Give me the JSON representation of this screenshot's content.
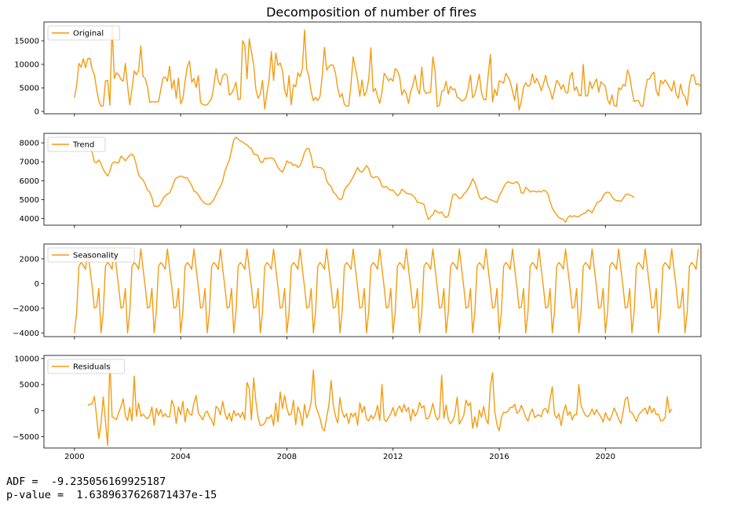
{
  "chart_data": {
    "type": "line",
    "title": "Decomposition of number of fires",
    "line_color": "#f39c12",
    "x_tick_labels": [
      "2000",
      "2004",
      "2008",
      "2012",
      "2016",
      "2020"
    ],
    "x_tick_years": [
      2000,
      2004,
      2008,
      2012,
      2016,
      2020
    ],
    "xlim": [
      1998.85,
      2023.6
    ],
    "x_start": 2000.0,
    "x_step": 0.08333,
    "panels": [
      {
        "name": "Original",
        "legend": "Original",
        "ylim": [
          -500,
          19000
        ],
        "yticks": [
          0,
          5000,
          10000,
          15000
        ],
        "x_start": 2000.0,
        "values": [
          2900,
          5600,
          10200,
          9400,
          11200,
          9300,
          11200,
          11300,
          8900,
          7800,
          4700,
          2300,
          1100,
          1200,
          6500,
          6600,
          1300,
          18200,
          7000,
          8200,
          7800,
          6800,
          6400,
          10200,
          5400,
          1400,
          4800,
          8600,
          7800,
          8700,
          13900,
          7400,
          7000,
          5200,
          1900,
          2100,
          2000,
          2000,
          2100,
          4600,
          7100,
          7300,
          6400,
          9600,
          4800,
          6700,
          2800,
          7100,
          1600,
          2700,
          6400,
          9500,
          10700,
          6200,
          7000,
          5100,
          7600,
          1900,
          1500,
          1300,
          1400,
          2100,
          2700,
          5400,
          9100,
          6500,
          5600,
          7600,
          8000,
          7600,
          3500,
          3800,
          4800,
          6200,
          2500,
          2700,
          15000,
          14100,
          6900,
          15400,
          12600,
          10000,
          4700,
          2800,
          3700,
          6600,
          500,
          3900,
          6800,
          12700,
          6600,
          12400,
          9800,
          10300,
          8700,
          4500,
          3100,
          7600,
          1400,
          5700,
          5200,
          8200,
          7400,
          9000,
          17300,
          8900,
          7400,
          4200,
          2300,
          3000,
          2300,
          3200,
          7600,
          13600,
          8800,
          9500,
          9900,
          9800,
          8100,
          4900,
          3000,
          3800,
          1500,
          1100,
          1200,
          5800,
          11600,
          9100,
          6700,
          3200,
          6700,
          3300,
          4200,
          6700,
          13500,
          4200,
          4900,
          3200,
          1700,
          4100,
          8100,
          7400,
          6500,
          7000,
          6400,
          9100,
          8600,
          7300,
          3500,
          4600,
          3800,
          1700,
          4200,
          5600,
          7700,
          4800,
          3700,
          9400,
          4500,
          3800,
          4000,
          4100,
          11600,
          8600,
          1000,
          1300,
          4200,
          4500,
          6400,
          3700,
          5300,
          4600,
          4800,
          3000,
          2800,
          2200,
          2400,
          2900,
          5000,
          7700,
          2900,
          3600,
          5600,
          7900,
          4000,
          2500,
          2500,
          7600,
          12100,
          2000,
          4700,
          3400,
          6500,
          6300,
          6000,
          8100,
          7300,
          6300,
          4300,
          2300,
          5900,
          300,
          2200,
          5100,
          6100,
          5300,
          5600,
          8000,
          6000,
          7000,
          5900,
          4400,
          5800,
          7700,
          5500,
          4500,
          2600,
          4500,
          6600,
          6000,
          4700,
          5700,
          4100,
          3900,
          7300,
          8300,
          4500,
          5200,
          3500,
          3300,
          10000,
          3300,
          3300,
          6400,
          4800,
          5900,
          6900,
          4100,
          6300,
          5800,
          5300,
          2500,
          1500,
          3500,
          1200,
          1100,
          5000,
          4600,
          5700,
          5400,
          8800,
          7500,
          4500,
          2100,
          2300,
          2300,
          1200,
          1100,
          4400,
          6800,
          6900,
          7900,
          8300,
          4400,
          3300,
          6600,
          5900,
          6700,
          6000,
          5100,
          4300,
          6500,
          3600,
          2800,
          5800,
          3700,
          3200,
          1300,
          5800,
          7800,
          7700,
          5700,
          5900,
          5400
        ]
      },
      {
        "name": "Trend",
        "legend": "Trend",
        "ylim": [
          3650,
          8500
        ],
        "yticks": [
          4000,
          5000,
          6000,
          7000,
          8000
        ],
        "x_start": 2000.5,
        "values": [
          7900,
          7700,
          7500,
          7000,
          6950,
          7100,
          6900,
          6600,
          6400,
          6250,
          6500,
          6900,
          7000,
          6950,
          6950,
          7300,
          7200,
          7050,
          7200,
          7350,
          7400,
          7250,
          6800,
          6300,
          6150,
          6050,
          5800,
          5500,
          5400,
          5100,
          4650,
          4650,
          4650,
          4800,
          5050,
          5200,
          5300,
          5350,
          5600,
          5950,
          6150,
          6200,
          6250,
          6200,
          6150,
          6150,
          5950,
          5750,
          5450,
          5400,
          5250,
          5050,
          4900,
          4800,
          4750,
          4750,
          4850,
          5000,
          5250,
          5500,
          5700,
          6000,
          6500,
          6800,
          7100,
          7600,
          8150,
          8300,
          8200,
          8100,
          8050,
          7950,
          7900,
          7750,
          7700,
          7400,
          7400,
          7300,
          7000,
          6950,
          7200,
          7150,
          7200,
          7200,
          7150,
          6950,
          6700,
          6550,
          6450,
          6700,
          7050,
          6950,
          6950,
          6800,
          6850,
          6700,
          6800,
          7100,
          7500,
          7700,
          7700,
          7300,
          6700,
          6750,
          6700,
          6700,
          6650,
          6500,
          6000,
          5800,
          5700,
          5400,
          5300,
          5100,
          5000,
          5050,
          5500,
          5700,
          5800,
          6000,
          6200,
          6450,
          6700,
          6500,
          6450,
          6600,
          6800,
          6650,
          6250,
          6150,
          6200,
          6200,
          6050,
          5700,
          5650,
          5700,
          5550,
          5500,
          5500,
          5350,
          5200,
          5300,
          5550,
          5450,
          5350,
          5300,
          5300,
          5200,
          5100,
          4850,
          4850,
          4800,
          4750,
          4300,
          3950,
          4100,
          4200,
          4450,
          4350,
          4300,
          4350,
          4150,
          4050,
          4150,
          4700,
          5250,
          5300,
          5200,
          5050,
          5100,
          5300,
          5400,
          5600,
          5800,
          6100,
          5900,
          5550,
          5150,
          5000,
          5100,
          5150,
          5050,
          5000,
          4950,
          4900,
          4850,
          5200,
          5400,
          5650,
          5850,
          5950,
          5900,
          5850,
          5900,
          5950,
          5800,
          5350,
          5350,
          5650,
          5550,
          5400,
          5450,
          5450,
          5400,
          5450,
          5400,
          5500,
          5450,
          5300,
          4900,
          4550,
          4350,
          4200,
          4050,
          4000,
          3950,
          3800,
          4050,
          4150,
          4100,
          4150,
          4100,
          4100,
          4200,
          4250,
          4300,
          4450,
          4400,
          4300,
          4550,
          4800,
          4900,
          4950,
          5200,
          5350,
          5400,
          5350,
          5150,
          5000,
          4950,
          4950,
          4900,
          5050,
          5250,
          5300,
          5250,
          5200,
          5100
        ]
      },
      {
        "name": "Seasonality",
        "legend": "Seasonality",
        "ylim": [
          -4300,
          3200
        ],
        "yticks": [
          -4000,
          -2000,
          0,
          2000
        ],
        "x_start": 2000.0,
        "pattern": [
          -4000,
          -2300,
          1400,
          1700,
          1500,
          1150,
          2800,
          1200,
          -300,
          -2000,
          -1900,
          -400
        ],
        "cycles": 23,
        "tail": [
          -4000,
          -2300,
          1400,
          1700,
          1500,
          1150,
          2800
        ]
      },
      {
        "name": "Residuals",
        "legend": "Residuals",
        "ylim": [
          -7200,
          10600
        ],
        "yticks": [
          -5000,
          0,
          5000,
          10000
        ],
        "x_start": 2000.5,
        "values": [
          1000,
          1200,
          1300,
          2700,
          -1200,
          -5400,
          -2500,
          2600,
          -2100,
          -6700,
          9800,
          -1200,
          -1500,
          -1700,
          -400,
          700,
          2300,
          -1000,
          -1900,
          600,
          -2000,
          6600,
          -1100,
          1400,
          -1100,
          -700,
          -1200,
          -1600,
          -1000,
          700,
          -2800,
          400,
          -900,
          200,
          -1200,
          -600,
          -1200,
          -1200,
          2000,
          800,
          -2500,
          700,
          -800,
          1800,
          -2200,
          400,
          -600,
          -900,
          1500,
          2900,
          -500,
          -1100,
          -1800,
          -500,
          -100,
          -1200,
          -1800,
          -2900,
          800,
          400,
          -800,
          1800,
          -500,
          -1700,
          -500,
          -2100,
          0,
          -1000,
          -500,
          -1300,
          -300,
          -1800,
          5400,
          4300,
          -1800,
          6300,
          1800,
          -1300,
          -2900,
          -2800,
          -2400,
          -1300,
          -1500,
          -800,
          -2900,
          1500,
          -2200,
          3600,
          400,
          2900,
          500,
          -900,
          -600,
          2000,
          -2700,
          700,
          -400,
          -2900,
          1200,
          -1400,
          -200,
          1600,
          7800,
          1000,
          -300,
          -1500,
          -3400,
          -3900,
          -1300,
          1000,
          5800,
          1000,
          -1100,
          -2400,
          2500,
          -200,
          -1300,
          -600,
          -2500,
          -500,
          -1200,
          -400,
          -2800,
          1500,
          -400,
          800,
          -1600,
          -2000,
          -900,
          -1600,
          -800,
          1000,
          -1900,
          5000,
          -1700,
          -2100,
          -1300,
          -600,
          600,
          -1100,
          200,
          900,
          -300,
          1200,
          -200,
          600,
          -2000,
          300,
          -1100,
          -300,
          1600,
          500,
          900,
          -1600,
          -1500,
          -400,
          1400,
          -700,
          -1800,
          -1300,
          6800,
          -1500,
          1100,
          -1700,
          -2500,
          -2000,
          -600,
          2600,
          -2600,
          -1800,
          -900,
          2000,
          900,
          1500,
          -3400,
          -1200,
          -3200,
          100,
          -1300,
          800,
          -1600,
          -2600,
          4600,
          7300,
          -200,
          -2700,
          -3900,
          -1300,
          -300,
          -400,
          -100,
          600,
          600,
          1200,
          -500,
          -200,
          1000,
          -100,
          -1300,
          -2000,
          -500,
          300,
          -1300,
          -1000,
          -800,
          -1200,
          200,
          400,
          -500,
          2200,
          4600,
          -700,
          -1500,
          -600,
          -2900,
          -400,
          1100,
          -900,
          -200,
          -1800,
          -800,
          -800,
          5000,
          1000,
          -100,
          -900,
          -1200,
          -700,
          300,
          -800,
          200,
          -600,
          -1200,
          -2200,
          -400,
          -1400,
          -1900,
          -800,
          500,
          -500,
          -1600,
          -2500,
          -300,
          2200,
          2600,
          -200,
          -400,
          -1100,
          -2100,
          -900,
          -300,
          100,
          500,
          -700,
          900,
          -400,
          400,
          -800,
          -700,
          -2000,
          -1900,
          -1400,
          2700,
          -400,
          300
        ]
      }
    ]
  },
  "stats": {
    "adf_line": "ADF =  -9.235056169925187",
    "pvalue_line": "p-value =  1.6389637626871437e-15"
  }
}
